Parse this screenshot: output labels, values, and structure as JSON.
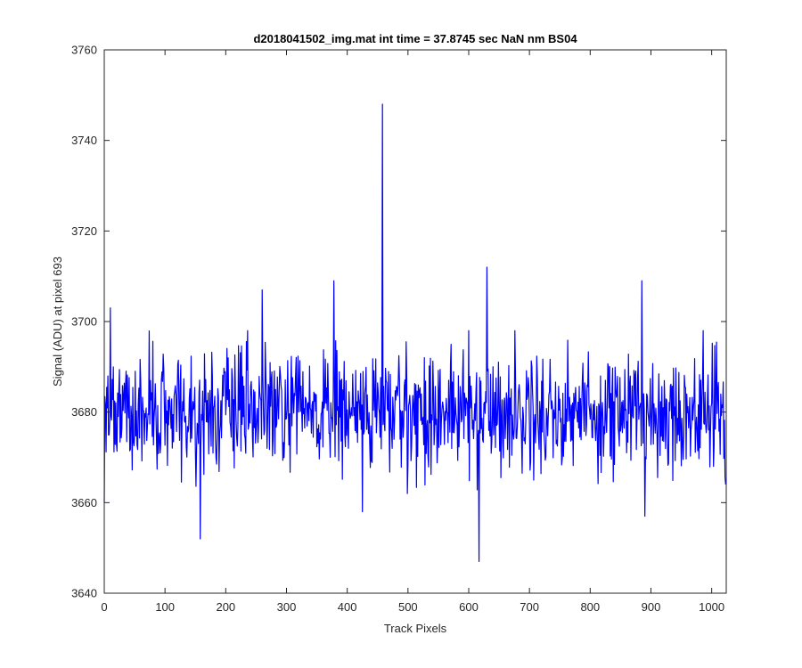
{
  "chart_data": {
    "type": "line",
    "title": "d2018041502_img.mat int time = 37.8745 sec  NaN nm BS04",
    "xlabel": "Track Pixels",
    "ylabel": "Signal (ADU) at pixel 693",
    "xlim": [
      0,
      1024
    ],
    "ylim": [
      3640,
      3760
    ],
    "xticks": [
      0,
      100,
      200,
      300,
      400,
      500,
      600,
      700,
      800,
      900,
      1000
    ],
    "yticks": [
      3640,
      3660,
      3680,
      3700,
      3720,
      3740,
      3760
    ],
    "grid": false,
    "legend": "none",
    "line_color": "#0000ff",
    "series": [
      {
        "n_points": 1024,
        "baseline": 3680,
        "noise_amplitude": 7,
        "values_notable": [
          {
            "x": 0,
            "y": 3660
          },
          {
            "x": 10,
            "y": 3703
          },
          {
            "x": 158,
            "y": 3652
          },
          {
            "x": 260,
            "y": 3707
          },
          {
            "x": 378,
            "y": 3709
          },
          {
            "x": 425,
            "y": 3658
          },
          {
            "x": 458,
            "y": 3748
          },
          {
            "x": 617,
            "y": 3647
          },
          {
            "x": 630,
            "y": 3712
          },
          {
            "x": 885,
            "y": 3709
          },
          {
            "x": 890,
            "y": 3657
          },
          {
            "x": 1023,
            "y": 3664
          }
        ]
      }
    ]
  }
}
